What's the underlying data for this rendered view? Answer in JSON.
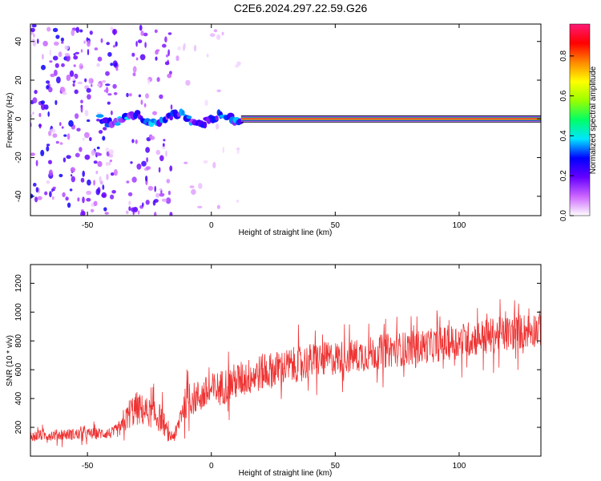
{
  "figure": {
    "title": "C2E6.2024.297.22.59.G26"
  },
  "chart_data": [
    {
      "type": "heatmap",
      "xlabel": "Height of straight line (km)",
      "ylabel": "Frequency (Hz)",
      "xlim": [
        -73,
        133
      ],
      "ylim": [
        -50,
        49
      ],
      "xticks": [
        "-50",
        "0",
        "50",
        "100"
      ],
      "yticks": [
        "40",
        "20",
        "0",
        "-20",
        "-40"
      ],
      "colorbar": {
        "label": "Normalized spectral amplitude",
        "range": [
          0,
          0.96
        ],
        "ticks": [
          "0.0",
          "0.2",
          "0.4",
          "0.6",
          "0.8"
        ],
        "colors": [
          "#ffffff",
          "#cc66ff",
          "#6600ff",
          "#0000ff",
          "#00e5ff",
          "#00ff66",
          "#99ff00",
          "#ffff00",
          "#ff8800",
          "#ff0000",
          "#ff1a75"
        ]
      },
      "features": [
        {
          "kind": "noise",
          "x_range": [
            -73,
            -38
          ],
          "y_range": [
            -50,
            49
          ],
          "intensity": 0.45
        },
        {
          "kind": "noise",
          "x_range": [
            -34,
            -16
          ],
          "y_range": [
            -50,
            49
          ],
          "intensity": 0.35
        },
        {
          "kind": "noise",
          "x_range": [
            -14,
            12
          ],
          "y_range": [
            -50,
            49
          ],
          "intensity": 0.08
        },
        {
          "kind": "signal",
          "x_range": [
            -45,
            12
          ],
          "frequency": 0,
          "amplitude": 0.4
        },
        {
          "kind": "line",
          "x_range": [
            12,
            133
          ],
          "frequency": 0,
          "amplitude": 0.95
        }
      ],
      "grid": false
    },
    {
      "type": "line",
      "xlabel": "Height of straight line (km)",
      "ylabel": "SNR (10 * v/v)",
      "xlim": [
        -73,
        133
      ],
      "ylim": [
        0,
        1330
      ],
      "xticks": [
        "-50",
        "0",
        "50",
        "100"
      ],
      "yticks": [
        "1200",
        "1000",
        "800",
        "600",
        "400",
        "200"
      ],
      "series_color": "#ee3333",
      "x": [
        -73,
        -60,
        -50,
        -40,
        -36,
        -33,
        -30,
        -25,
        -20,
        -17,
        -14,
        -12,
        -10,
        0,
        10,
        20,
        30,
        40,
        50,
        60,
        70,
        80,
        90,
        100,
        110,
        120,
        130,
        133
      ],
      "values": [
        140,
        150,
        155,
        160,
        200,
        300,
        330,
        300,
        260,
        130,
        160,
        320,
        380,
        450,
        520,
        580,
        620,
        660,
        680,
        700,
        730,
        750,
        770,
        800,
        830,
        850,
        880,
        890
      ],
      "spread": [
        70,
        80,
        80,
        80,
        120,
        220,
        240,
        200,
        200,
        80,
        120,
        220,
        220,
        250,
        260,
        260,
        250,
        250,
        240,
        240,
        240,
        240,
        240,
        250,
        250,
        250,
        250,
        250
      ],
      "grid": false
    }
  ]
}
